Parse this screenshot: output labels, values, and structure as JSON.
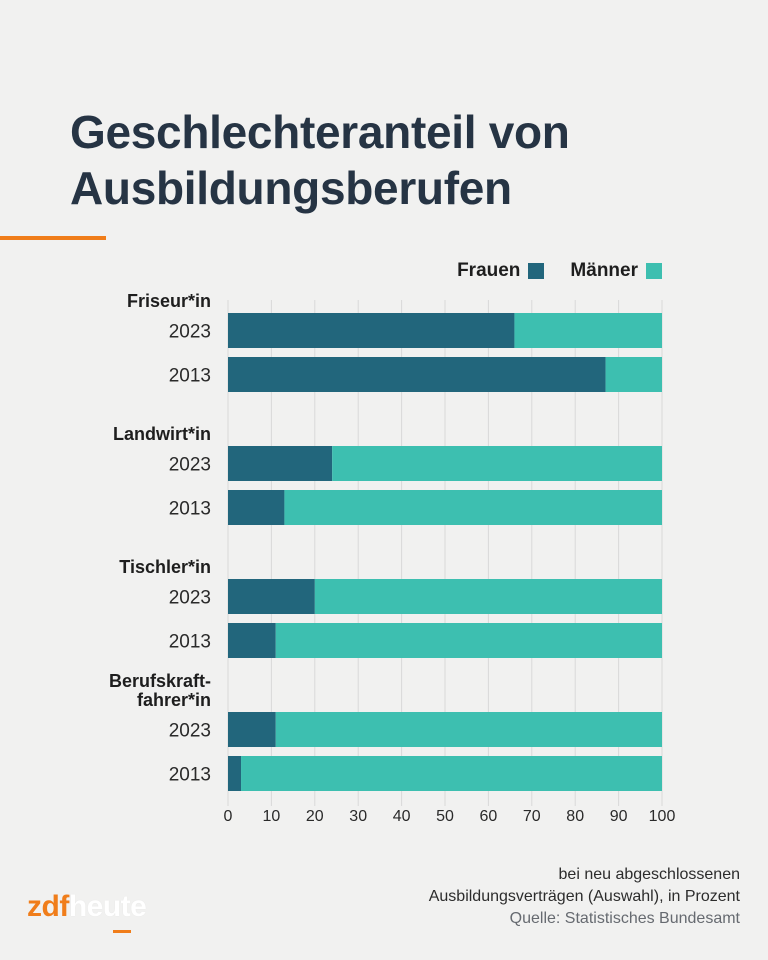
{
  "title_line1": "Geschlechteranteil von",
  "title_line2": "Ausbildungsberufen",
  "colors": {
    "frauen": "#22667c",
    "maenner": "#3dbfb0",
    "accent": "#f07d1a",
    "title": "#263444",
    "grid": "#d9d9d9"
  },
  "legend": {
    "frauen": "Frauen",
    "maenner": "Männer"
  },
  "footnote": {
    "line1": "bei neu abgeschlossenen",
    "line2": "Ausbildungsverträgen (Auswahl), in Prozent",
    "source": "Quelle: Statistisches Bundesamt"
  },
  "logo": {
    "zdf": "zdf",
    "heute": "heute"
  },
  "chart_data": {
    "type": "bar",
    "orientation": "horizontal",
    "stacked": true,
    "title": "Geschlechteranteil von Ausbildungsberufen",
    "xlabel": "",
    "ylabel": "",
    "xlim": [
      0,
      100
    ],
    "x_ticks": [
      0,
      10,
      20,
      30,
      40,
      50,
      60,
      70,
      80,
      90,
      100
    ],
    "grid": true,
    "legend_position": "top-right",
    "groups": [
      {
        "label": "Friseur*in",
        "label_lines": [
          "Friseur*in"
        ],
        "years": [
          "2023",
          "2013"
        ],
        "frauen": [
          66,
          87
        ]
      },
      {
        "label": "Landwirt*in",
        "label_lines": [
          "Landwirt*in"
        ],
        "years": [
          "2023",
          "2013"
        ],
        "frauen": [
          24,
          13
        ]
      },
      {
        "label": "Tischler*in",
        "label_lines": [
          "Tischler*in"
        ],
        "years": [
          "2023",
          "2013"
        ],
        "frauen": [
          20,
          11
        ]
      },
      {
        "label": "Berufskraftfahrer*in",
        "label_lines": [
          "Berufskraft-",
          "fahrer*in"
        ],
        "years": [
          "2023",
          "2013"
        ],
        "frauen": [
          11,
          3
        ]
      }
    ],
    "series": [
      {
        "name": "Frauen",
        "values": [
          66,
          87,
          24,
          13,
          20,
          11,
          11,
          3
        ]
      },
      {
        "name": "Männer",
        "values": [
          34,
          13,
          76,
          87,
          80,
          89,
          89,
          97
        ]
      }
    ],
    "categories": [
      "Friseur*in 2023",
      "Friseur*in 2013",
      "Landwirt*in 2023",
      "Landwirt*in 2013",
      "Tischler*in 2023",
      "Tischler*in 2013",
      "Berufskraftfahrer*in 2023",
      "Berufskraftfahrer*in 2013"
    ]
  }
}
